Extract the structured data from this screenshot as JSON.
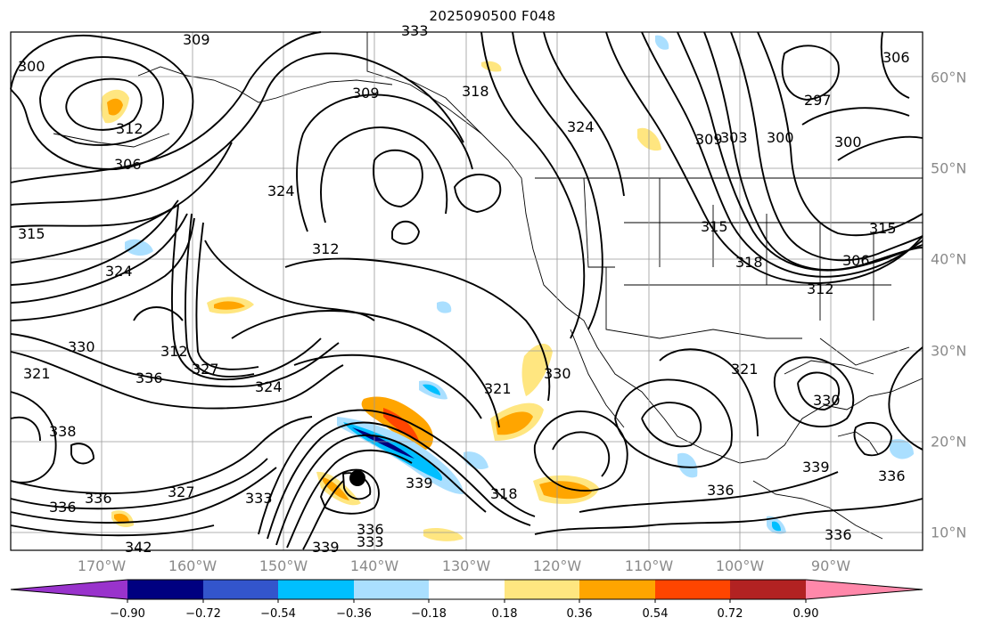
{
  "title": "2025090500 F048",
  "longitude_labels": [
    "170°W",
    "160°W",
    "150°W",
    "140°W",
    "130°W",
    "120°W",
    "110°W",
    "100°W",
    "90°W"
  ],
  "latitude_labels": [
    "60°N",
    "50°N",
    "40°N",
    "30°N",
    "20°N",
    "10°N"
  ],
  "colorbar": {
    "ticks": [
      "−0.90",
      "−0.72",
      "−0.54",
      "−0.36",
      "−0.18",
      "0.18",
      "0.36",
      "0.54",
      "0.72",
      "0.90"
    ],
    "colors": [
      "#9933cc",
      "#000080",
      "#3355cc",
      "#00bfff",
      "#aadfff",
      "#ffffff",
      "#ffe680",
      "#ffa500",
      "#ff4500",
      "#b22222",
      "#ff88aa"
    ]
  },
  "contour_labels": [
    "300",
    "309",
    "312",
    "306",
    "309",
    "318",
    "324",
    "309",
    "303",
    "300",
    "297",
    "300",
    "315",
    "324",
    "312",
    "306",
    "315",
    "324",
    "312",
    "318",
    "315",
    "312",
    "306",
    "330",
    "321",
    "327",
    "336",
    "324",
    "321",
    "330",
    "338",
    "336",
    "327",
    "333",
    "339",
    "336",
    "318",
    "339",
    "336",
    "333",
    "330",
    "339",
    "321",
    "336",
    "336",
    "336",
    "342",
    "333"
  ],
  "features": {
    "storm_marker": "black-dot"
  }
}
